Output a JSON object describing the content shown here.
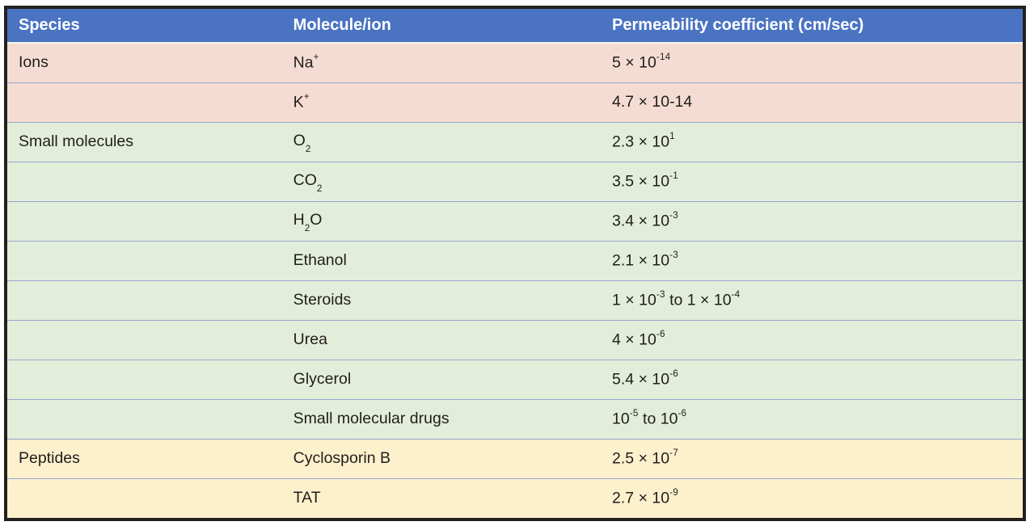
{
  "chart_data": {
    "type": "table",
    "columns": [
      "Species",
      "Molecule/ion",
      "Permeability coefficient (cm/sec)"
    ],
    "groups": [
      {
        "species": "Ions",
        "tone": "pink",
        "rows": [
          {
            "species": "Ions",
            "molecule": "Na^+^",
            "value": "5 × 10^-14^"
          },
          {
            "species": "",
            "molecule": "K^+^",
            "value": "4.7 × 10-14"
          }
        ]
      },
      {
        "species": "Small molecules",
        "tone": "green",
        "rows": [
          {
            "species": "Small molecules",
            "molecule": "O~2~",
            "value": "2.3 × 10^1^"
          },
          {
            "species": "",
            "molecule": "CO~2~",
            "value": "3.5 × 10^-1^"
          },
          {
            "species": "",
            "molecule": "H~2~O",
            "value": "3.4 × 10^-3^"
          },
          {
            "species": "",
            "molecule": "Ethanol",
            "value": "2.1 × 10^-3^"
          },
          {
            "species": "",
            "molecule": "Steroids",
            "value": "1 × 10^-3^ to 1 × 10^-4^"
          },
          {
            "species": "",
            "molecule": "Urea",
            "value": "4 × 10^-6^"
          },
          {
            "species": "",
            "molecule": "Glycerol",
            "value": "5.4 × 10^-6^"
          },
          {
            "species": "",
            "molecule": "Small molecular drugs",
            "value": "10^-5^ to 10^-6^"
          }
        ]
      },
      {
        "species": "Peptides",
        "tone": "yellow",
        "rows": [
          {
            "species": "Peptides",
            "molecule": "Cyclosporin B",
            "value": "2.5 × 10^-7^"
          },
          {
            "species": "",
            "molecule": "TAT",
            "value": "2.7 × 10^-9^"
          }
        ]
      }
    ],
    "layout": {
      "notation": "caret markers ^x^ denote superscript, tilde markers ~x~ denote subscript",
      "grid": "horizontal dividers only",
      "header_style": "bold white on blue"
    }
  },
  "colors": {
    "header-blue": "#4a73c2",
    "pink": "#f5dcd2",
    "green": "#e3eeda",
    "yellow": "#fdf1cd",
    "divider": "#96a5d2",
    "border": "#24201c",
    "text": "#211e1b",
    "header-text": "#ffffff",
    "page-bg": "#ffffff"
  }
}
